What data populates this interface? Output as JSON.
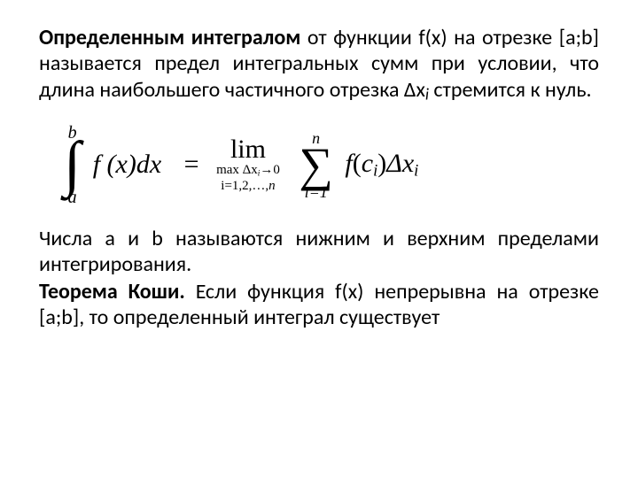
{
  "colors": {
    "text": "#000000",
    "background": "#ffffff"
  },
  "typography": {
    "body_font": "Calibri",
    "body_size_pt": 18,
    "formula_font": "Cambria Math",
    "formula_size_pt": 22,
    "bold_weight": 700
  },
  "paragraph1": {
    "strong": "Определенным интегралом",
    "rest_a": " от функции f(x) на отрезке [a;b] называется предел интегральных сумм при условии, что длина наибольшего частичного отрезка Δx",
    "sub": "i",
    "rest_b": " стремится к нуль."
  },
  "formula": {
    "integral": {
      "upper": "b",
      "lower": "a",
      "integrand": "f (x)dx"
    },
    "equals": "=",
    "lim": {
      "word": "lim",
      "sub1_pre": "max Δx",
      "sub1_i": "i",
      "sub1_post": "→0",
      "sub2_pre": "i=1,2,…,",
      "sub2_n": "n"
    },
    "sum": {
      "upper": "n",
      "lower": "i=1"
    },
    "term": {
      "f": "f",
      "open": "(",
      "c": "c",
      "ci_sub": "i",
      "close": ")",
      "delta": "Δx",
      "dx_sub": "i"
    }
  },
  "paragraph2": {
    "line1": "Числа a и b называются нижним и верхним пределами интегрирования.",
    "strong2": "Теорема Коши.",
    "line2": " Если функция f(x) непрерывна на отрезке [a;b], то определенный интеграл существует"
  }
}
